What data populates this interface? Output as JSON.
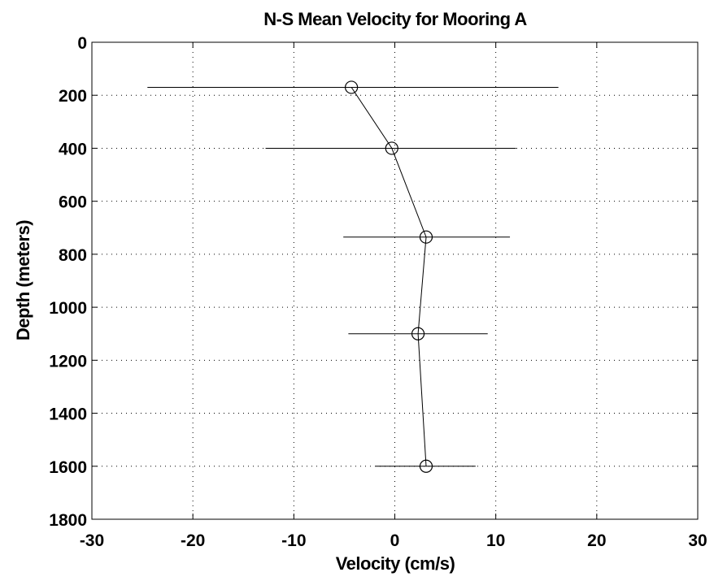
{
  "chart_data": {
    "type": "line",
    "title": "N-S Mean Velocity for Mooring A",
    "xlabel": "Velocity (cm/s)",
    "ylabel": "Depth (meters)",
    "xlim": [
      -30,
      30
    ],
    "ylim": [
      0,
      1800
    ],
    "y_inverted": true,
    "grid": true,
    "x_ticks": [
      "-30",
      "-20",
      "-10",
      "0",
      "10",
      "20",
      "30"
    ],
    "y_ticks": [
      "0",
      "200",
      "400",
      "600",
      "800",
      "1000",
      "1200",
      "1400",
      "1600",
      "1800"
    ],
    "marker": "open-circle",
    "points": [
      {
        "depth": 170,
        "velocity": -4.3,
        "err_low": -24.5,
        "err_high": 16.2
      },
      {
        "depth": 400,
        "velocity": -0.3,
        "err_low": -12.8,
        "err_high": 12.0
      },
      {
        "depth": 735,
        "velocity": 3.1,
        "err_low": -5.1,
        "err_high": 11.4
      },
      {
        "depth": 1100,
        "velocity": 2.3,
        "err_low": -4.6,
        "err_high": 9.2
      },
      {
        "depth": 1600,
        "velocity": 3.1,
        "err_low": -1.9,
        "err_high": 8.0
      }
    ]
  }
}
